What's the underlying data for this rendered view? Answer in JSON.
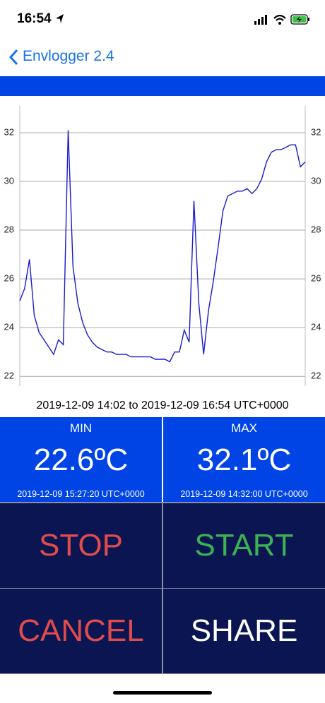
{
  "status_bar": {
    "time": "16:54"
  },
  "nav": {
    "back_label": "Envlogger 2.4"
  },
  "chart_data": {
    "type": "line",
    "ylim": [
      21.6,
      33.1
    ],
    "yticks": [
      22,
      24,
      26,
      28,
      30,
      32
    ],
    "grid": true,
    "series": [
      {
        "color": "#1a1ad0",
        "values": [
          25.1,
          25.6,
          26.8,
          24.5,
          23.8,
          23.5,
          23.2,
          22.9,
          23.5,
          23.3,
          32.1,
          26.5,
          25.0,
          24.2,
          23.7,
          23.4,
          23.2,
          23.1,
          23.0,
          23.0,
          22.9,
          22.9,
          22.9,
          22.8,
          22.8,
          22.8,
          22.8,
          22.8,
          22.7,
          22.7,
          22.7,
          22.6,
          23.0,
          23.0,
          23.9,
          23.4,
          29.2,
          25.0,
          22.9,
          24.7,
          25.9,
          27.3,
          28.8,
          29.4,
          29.5,
          29.6,
          29.6,
          29.7,
          29.5,
          29.7,
          30.1,
          30.8,
          31.2,
          31.3,
          31.3,
          31.4,
          31.5,
          31.5,
          30.6,
          30.8
        ]
      }
    ]
  },
  "range_label": "2019-12-09 14:02 to 2019-12-09 16:54 UTC+0000",
  "stats": [
    {
      "label": "MIN",
      "value": "22.6ºC",
      "time": "2019-12-09 15:27:20 UTC+0000"
    },
    {
      "label": "MAX",
      "value": "32.1ºC",
      "time": "2019-12-09 14:32:00 UTC+0000"
    }
  ],
  "buttons": [
    "STOP",
    "START",
    "CANCEL",
    "SHARE"
  ]
}
